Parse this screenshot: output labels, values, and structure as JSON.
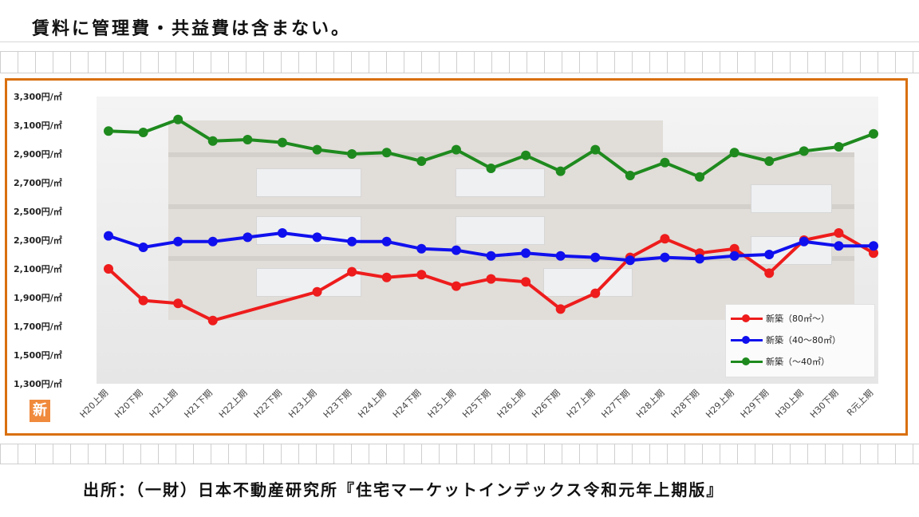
{
  "header": {
    "note": "賃料に管理費・共益費は含まない。"
  },
  "badge": {
    "text": "新"
  },
  "footer": {
    "source": "出所：（一財）日本不動産研究所『住宅マーケットインデックス令和元年上期版』"
  },
  "chart_data": {
    "type": "line",
    "title": "",
    "xlabel": "",
    "ylabel": "",
    "ylim": [
      1300,
      3300
    ],
    "yticks": [
      1300,
      1500,
      1700,
      1900,
      2100,
      2300,
      2500,
      2700,
      2900,
      3100,
      3300
    ],
    "ytick_labels": [
      "1,300円/㎡",
      "1,500円/㎡",
      "1,700円/㎡",
      "1,900円/㎡",
      "2,100円/㎡",
      "2,300円/㎡",
      "2,500円/㎡",
      "2,700円/㎡",
      "2,900円/㎡",
      "3,100円/㎡",
      "3,300円/㎡"
    ],
    "categories": [
      "H20上期",
      "H20下期",
      "H21上期",
      "H21下期",
      "H22上期",
      "H22下期",
      "H23上期",
      "H23下期",
      "H24上期",
      "H24下期",
      "H25上期",
      "H25下期",
      "H26上期",
      "H26下期",
      "H27上期",
      "H27下期",
      "H28上期",
      "H28下期",
      "H29上期",
      "H29下期",
      "H30上期",
      "H30下期",
      "R元上期"
    ],
    "legend_position": "bottom-right",
    "grid": false,
    "series": [
      {
        "name": "新築（80㎡～）",
        "color": "#ee1c1c",
        "values": [
          2100,
          1880,
          1860,
          1740,
          null,
          null,
          1940,
          2080,
          2040,
          2060,
          1980,
          2030,
          2010,
          1820,
          1930,
          2180,
          2310,
          2210,
          2240,
          2070,
          2300,
          2350,
          2210
        ]
      },
      {
        "name": "新築（40～80㎡）",
        "color": "#1010ee",
        "values": [
          2330,
          2250,
          2290,
          2290,
          2320,
          2350,
          2320,
          2290,
          2290,
          2240,
          2230,
          2190,
          2210,
          2190,
          2180,
          2160,
          2180,
          2170,
          2190,
          2200,
          2290,
          2260,
          2260
        ]
      },
      {
        "name": "新築（～40㎡）",
        "color": "#1e8a1e",
        "values": [
          3060,
          3050,
          3140,
          2990,
          3000,
          2980,
          2930,
          2900,
          2910,
          2850,
          2930,
          2800,
          2890,
          2780,
          2930,
          2750,
          2840,
          2740,
          2910,
          2850,
          2920,
          2950,
          3040
        ]
      }
    ]
  }
}
